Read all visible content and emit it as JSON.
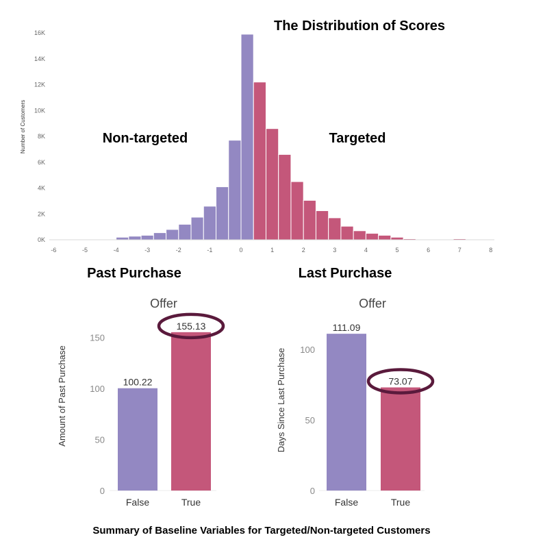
{
  "colors": {
    "purple": "#9388c2",
    "red": "#c4577a",
    "ellipse": "#5a1a3c",
    "axis_text": "#666666",
    "dark_text": "#000000"
  },
  "caption": "Summary of Baseline Variables for Targeted/Non-targeted Customers",
  "chart_data": [
    {
      "type": "bar",
      "title": "The Distribution of Scores",
      "ylabel": "Number of Customers",
      "xlabel": "",
      "annotations": [
        "Non-targeted",
        "Targeted"
      ],
      "x_ticks": [
        "-6",
        "-5",
        "-4",
        "-3",
        "-2",
        "-1",
        "0",
        "1",
        "2",
        "3",
        "4",
        "5",
        "6",
        "7",
        "8"
      ],
      "y_ticks": [
        "0K",
        "2K",
        "4K",
        "6K",
        "8K",
        "10K",
        "12K",
        "14K",
        "16K"
      ],
      "xlim": [
        -6,
        8
      ],
      "ylim": [
        0,
        16000
      ],
      "bin_width": 0.4,
      "bins": [
        {
          "start": -4.4,
          "value": 50,
          "group": "Non-targeted"
        },
        {
          "start": -4.0,
          "value": 200,
          "group": "Non-targeted"
        },
        {
          "start": -3.6,
          "value": 280,
          "group": "Non-targeted"
        },
        {
          "start": -3.2,
          "value": 350,
          "group": "Non-targeted"
        },
        {
          "start": -2.8,
          "value": 550,
          "group": "Non-targeted"
        },
        {
          "start": -2.4,
          "value": 800,
          "group": "Non-targeted"
        },
        {
          "start": -2.0,
          "value": 1200,
          "group": "Non-targeted"
        },
        {
          "start": -1.6,
          "value": 1750,
          "group": "Non-targeted"
        },
        {
          "start": -1.2,
          "value": 2600,
          "group": "Non-targeted"
        },
        {
          "start": -0.8,
          "value": 4100,
          "group": "Non-targeted"
        },
        {
          "start": -0.4,
          "value": 7700,
          "group": "Non-targeted"
        },
        {
          "start": -0.0,
          "value": 15900,
          "group": "Non-targeted"
        },
        {
          "start": 0.4,
          "value": 12200,
          "group": "Targeted"
        },
        {
          "start": 0.8,
          "value": 8600,
          "group": "Targeted"
        },
        {
          "start": 1.2,
          "value": 6600,
          "group": "Targeted"
        },
        {
          "start": 1.6,
          "value": 4500,
          "group": "Targeted"
        },
        {
          "start": 2.0,
          "value": 3050,
          "group": "Targeted"
        },
        {
          "start": 2.4,
          "value": 2250,
          "group": "Targeted"
        },
        {
          "start": 2.8,
          "value": 1700,
          "group": "Targeted"
        },
        {
          "start": 3.2,
          "value": 1050,
          "group": "Targeted"
        },
        {
          "start": 3.6,
          "value": 700,
          "group": "Targeted"
        },
        {
          "start": 4.0,
          "value": 500,
          "group": "Targeted"
        },
        {
          "start": 4.4,
          "value": 350,
          "group": "Targeted"
        },
        {
          "start": 4.8,
          "value": 200,
          "group": "Targeted"
        },
        {
          "start": 5.2,
          "value": 80,
          "group": "Targeted"
        },
        {
          "start": 5.6,
          "value": 40,
          "group": "Targeted"
        },
        {
          "start": 6.0,
          "value": 20,
          "group": "Targeted"
        },
        {
          "start": 6.8,
          "value": 80,
          "group": "Targeted"
        }
      ],
      "grid": false
    },
    {
      "type": "bar",
      "title": "Past Purchase",
      "subtitle": "Offer",
      "ylabel": "Amount of Past Purchase",
      "categories": [
        "False",
        "True"
      ],
      "values": [
        100.22,
        155.13
      ],
      "value_labels": [
        "100.22",
        "155.13"
      ],
      "y_ticks": [
        "0",
        "50",
        "100",
        "150"
      ],
      "ylim": [
        0,
        165
      ],
      "highlighted_category": "True"
    },
    {
      "type": "bar",
      "title": "Last Purchase",
      "subtitle": "Offer",
      "ylabel": "Days Since Last Purchase",
      "categories": [
        "False",
        "True"
      ],
      "values": [
        111.09,
        73.07
      ],
      "value_labels": [
        "111.09",
        "73.07"
      ],
      "y_ticks": [
        "0",
        "50",
        "100"
      ],
      "ylim": [
        0,
        122
      ],
      "highlighted_category": "True"
    }
  ]
}
